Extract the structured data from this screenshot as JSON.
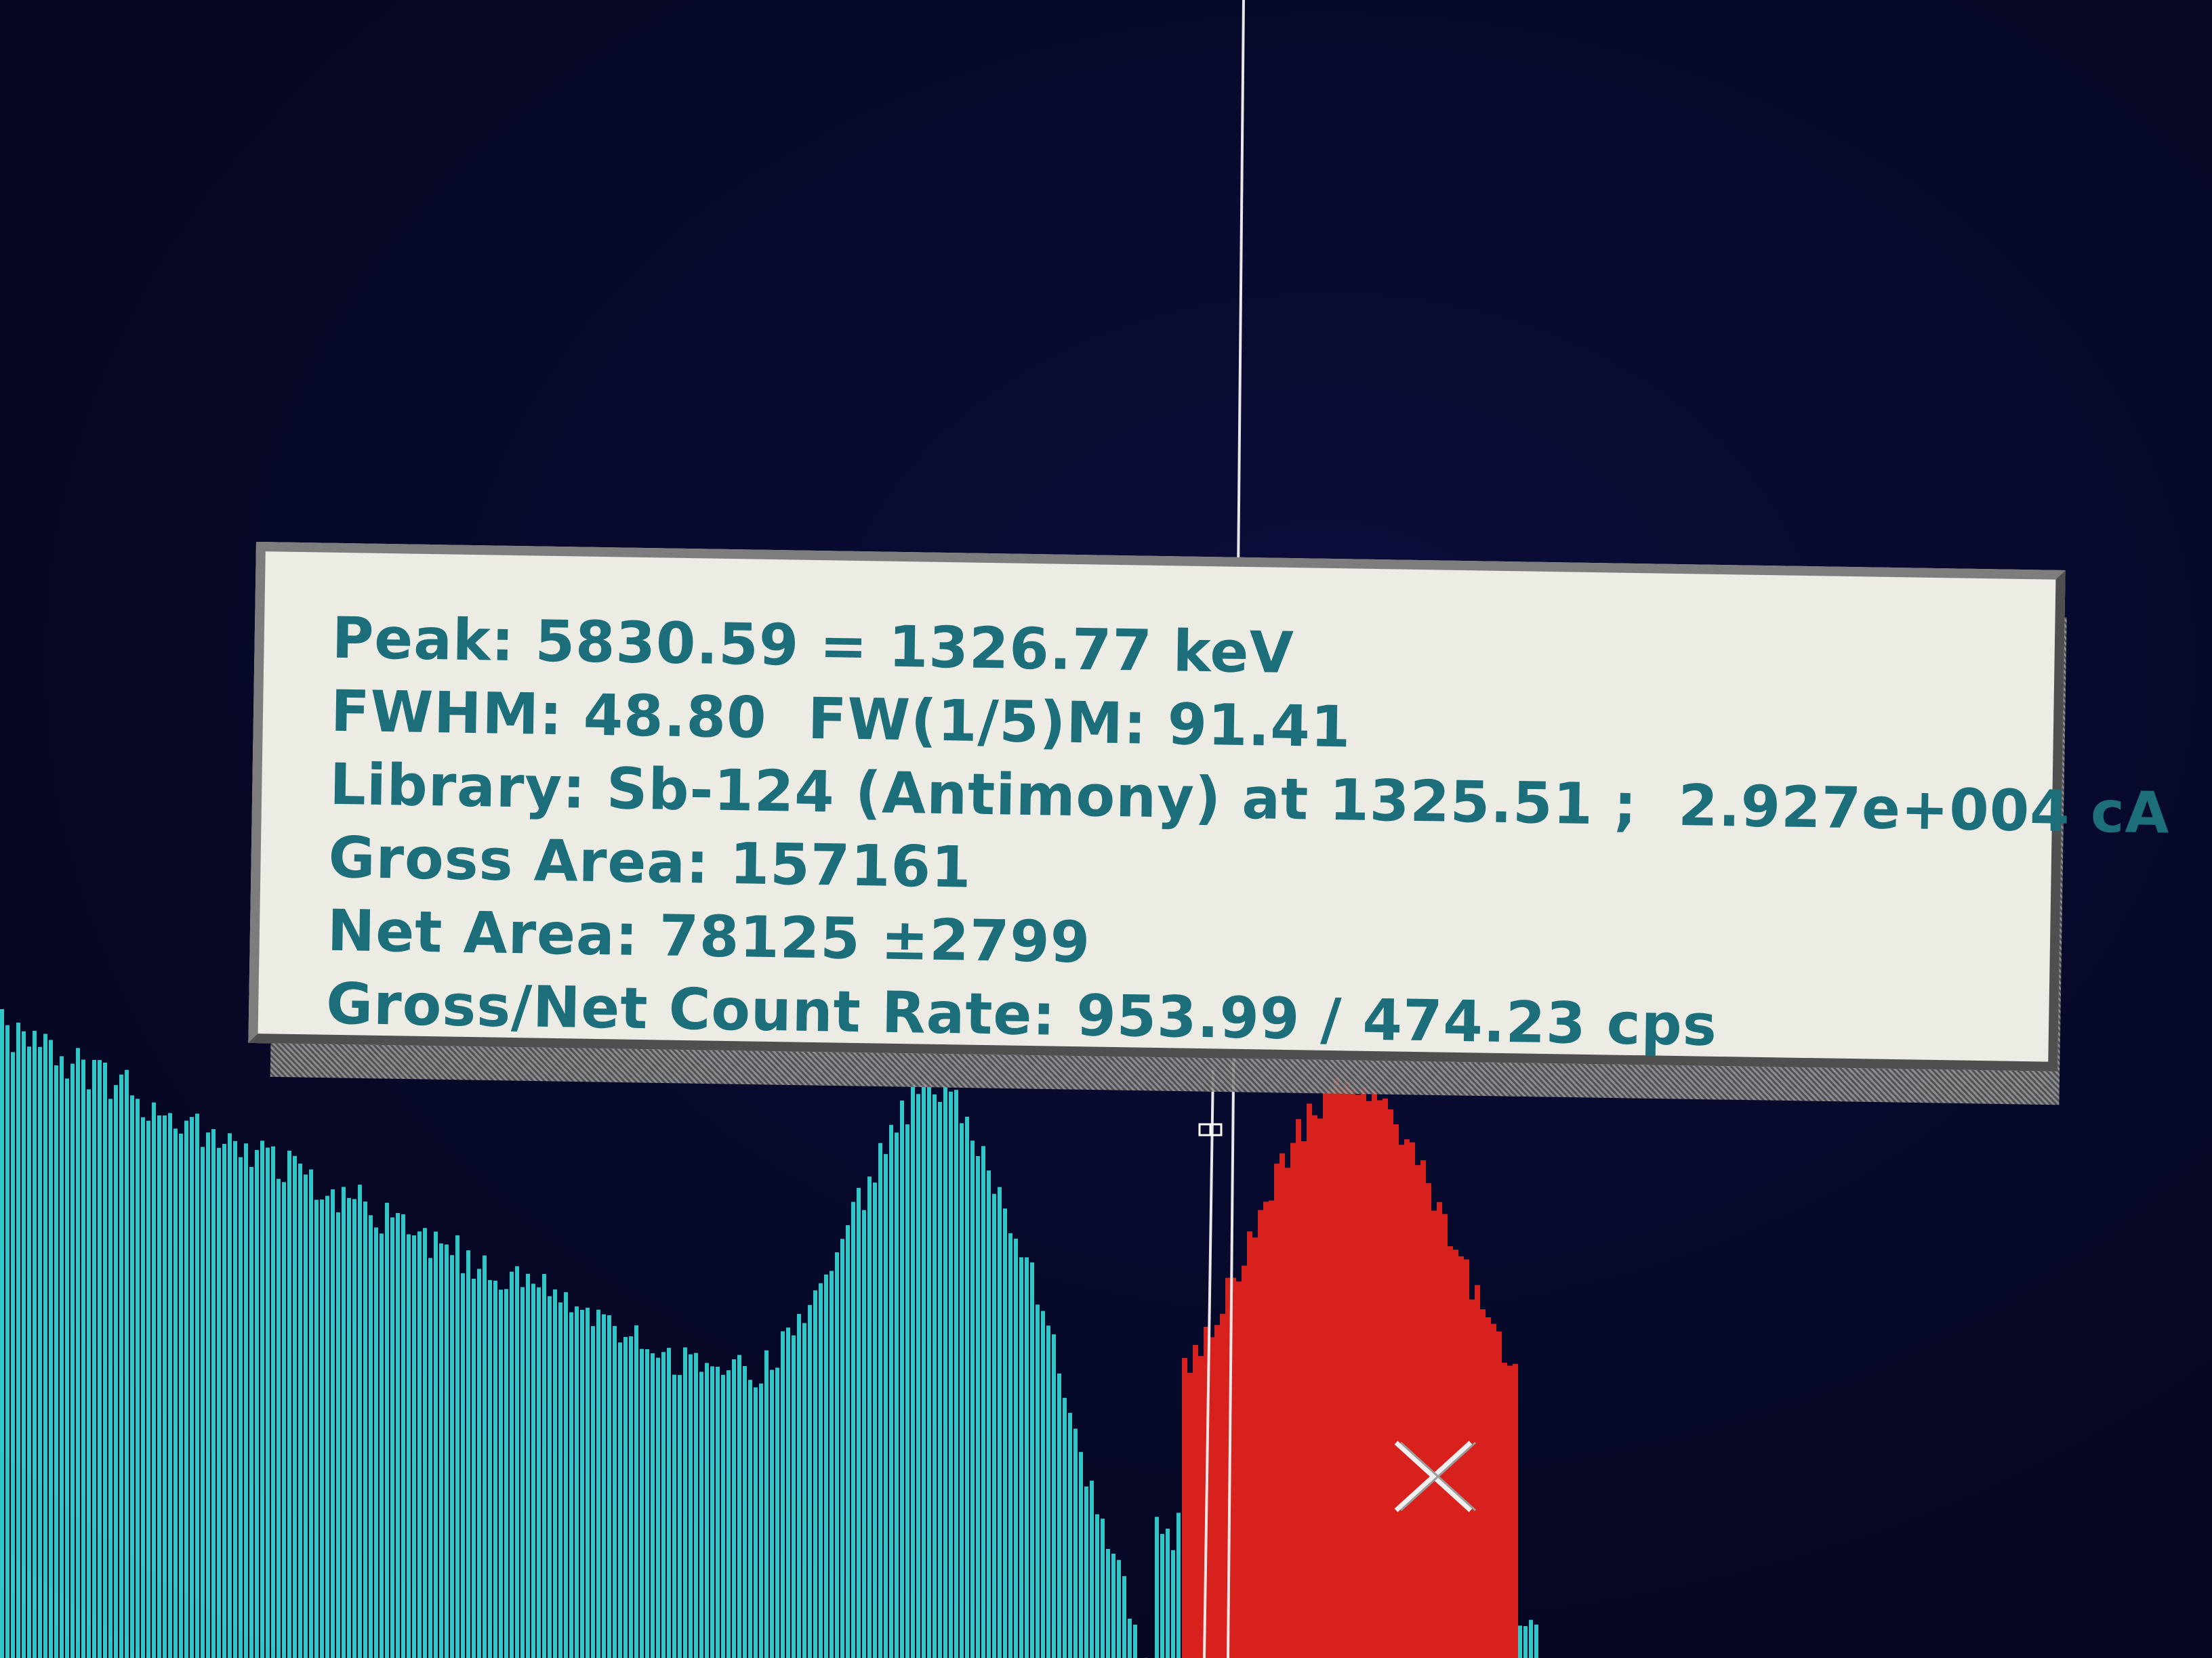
{
  "colors": {
    "background": "#070a2e",
    "spectrum": "#2fc7c7",
    "roi": "#d8201c",
    "cursor": "#e6e6e6",
    "panel_bg": "#ecebe4",
    "panel_text": "#1c6f7a"
  },
  "peak_info": {
    "peak_line": "Peak: 5830.59 = 1326.77 keV",
    "fwhm_line": "FWHM: 48.80  FW(1/5)M: 91.41",
    "library_line": "Library: Sb-124 (Antimony) at 1325.51 ;  2.927e+004 cA",
    "gross_area_line": "Gross Area: 157161",
    "net_area_line": "Net Area: 78125 ±2799",
    "count_rate_line": "Gross/Net Count Rate: 953.99 / 474.23 cps"
  },
  "cursor": {
    "icon": "crosshair-x-icon"
  }
}
